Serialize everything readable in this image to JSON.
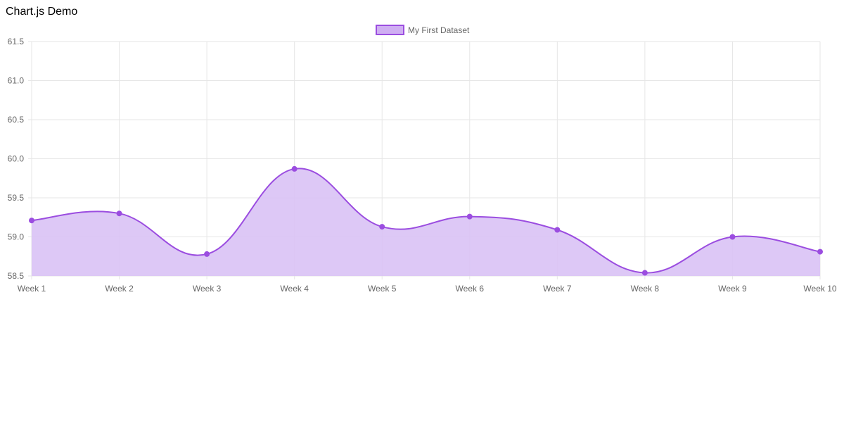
{
  "page": {
    "title": "Chart.js Demo"
  },
  "chart_data": {
    "type": "area",
    "categories": [
      "Week 1",
      "Week 2",
      "Week 3",
      "Week 4",
      "Week 5",
      "Week 6",
      "Week 7",
      "Week 8",
      "Week 9",
      "Week 10"
    ],
    "series": [
      {
        "name": "My First Dataset",
        "values": [
          59.21,
          59.3,
          58.78,
          59.87,
          59.13,
          59.26,
          59.09,
          58.54,
          59.0,
          58.81
        ]
      }
    ],
    "ylim": [
      58.5,
      61.5
    ],
    "yticks": [
      "61.5",
      "61.0",
      "60.5",
      "60.0",
      "59.5",
      "59.0",
      "58.5"
    ],
    "grid": true,
    "legend_position": "top",
    "colors": {
      "line": "#9b4de0",
      "fill": "#d9c2f5",
      "legend_fill": "#cfaef2",
      "grid": "#e6e6e6",
      "tick_text": "#666666"
    }
  }
}
